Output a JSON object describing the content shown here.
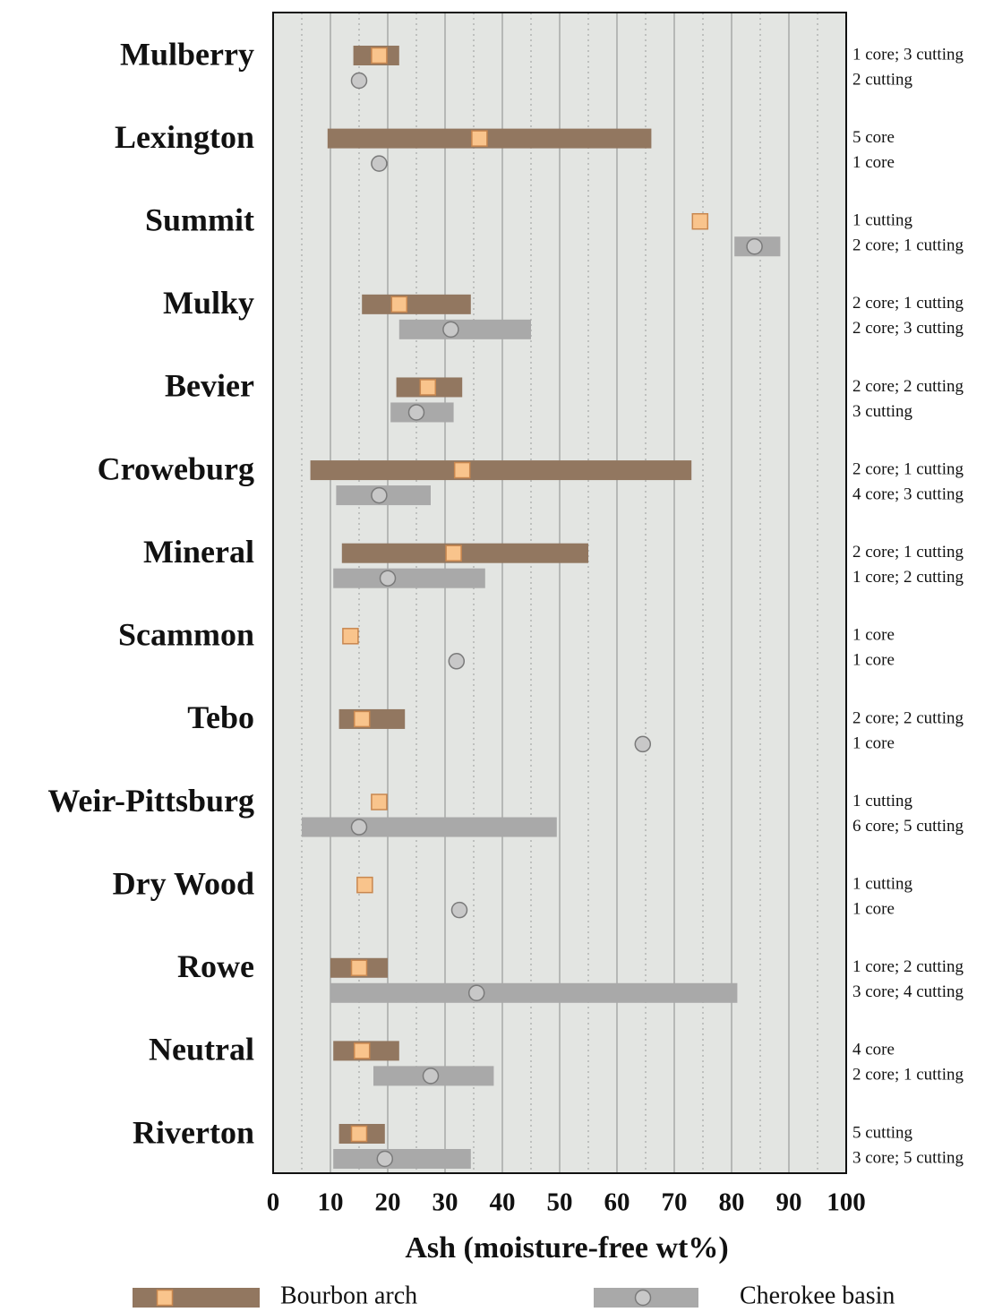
{
  "chart_data": {
    "type": "range",
    "xlabel": "Ash (moisture-free wt%)",
    "categories": [
      "Mulberry",
      "Lexington",
      "Summit",
      "Mulky",
      "Bevier",
      "Croweburg",
      "Mineral",
      "Scammon",
      "Tebo",
      "Weir-Pittsburg",
      "Dry Wood",
      "Rowe",
      "Neutral",
      "Riverton"
    ],
    "xlim": [
      0,
      100
    ],
    "xticks": [
      0,
      10,
      20,
      30,
      40,
      50,
      60,
      70,
      80,
      90,
      100
    ],
    "xminor": [
      5,
      15,
      25,
      35,
      45,
      55,
      65,
      75,
      85,
      95
    ],
    "grid": true,
    "series": [
      {
        "name": "Bourbon arch",
        "color": "#927760",
        "marker": "square",
        "marker_color": "#f9c48c",
        "min": [
          14,
          9.5,
          null,
          15.5,
          21.5,
          6.5,
          12,
          null,
          11.5,
          null,
          null,
          10,
          10.5,
          11.5
        ],
        "max": [
          22,
          66,
          null,
          34.5,
          33,
          73,
          55,
          null,
          23,
          null,
          null,
          20,
          22,
          19.5
        ],
        "mean": [
          18.5,
          36,
          74.5,
          22,
          27,
          33,
          31.5,
          13.5,
          15.5,
          18.5,
          16,
          15,
          15.5,
          15
        ],
        "samples": [
          "1 core; 3 cutting",
          "5 core",
          "1 cutting",
          "2 core; 1 cutting",
          "2 core; 2 cutting",
          "2 core; 1 cutting",
          "2 core; 1 cutting",
          "1 core",
          "2 core; 2 cutting",
          "1 cutting",
          "1 cutting",
          "1 core; 2 cutting",
          "4 core",
          "5 cutting"
        ]
      },
      {
        "name": "Cherokee basin",
        "color": "#a9a9a9",
        "marker": "circle",
        "marker_color": "#c8c8c8",
        "min": [
          null,
          null,
          80.5,
          22,
          20.5,
          11,
          10.5,
          null,
          null,
          5,
          null,
          10,
          17.5,
          10.5
        ],
        "max": [
          null,
          null,
          88.5,
          45,
          31.5,
          27.5,
          37,
          null,
          null,
          49.5,
          null,
          81,
          38.5,
          34.5
        ],
        "mean": [
          15,
          18.5,
          84,
          31,
          25,
          18.5,
          20,
          32,
          64.5,
          15,
          32.5,
          35.5,
          27.5,
          19.5
        ],
        "samples": [
          "2 cutting",
          "1 core",
          "2 core; 1 cutting",
          "2 core; 3 cutting",
          "3 cutting",
          "4 core; 3 cutting",
          "1 core; 2 cutting",
          "1 core",
          "1 core",
          "6 core; 5 cutting",
          "1 core",
          "3 core; 4 cutting",
          "2 core; 1 cutting",
          "3 core; 5 cutting"
        ]
      }
    ]
  }
}
